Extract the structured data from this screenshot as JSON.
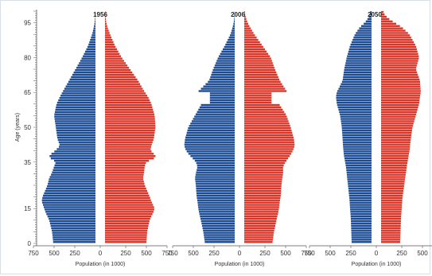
{
  "chart_data": {
    "type": "bar",
    "subtype": "population-pyramid",
    "y_axis": {
      "label": "Age (years)",
      "range": [
        0,
        100
      ],
      "ticks": [
        0,
        15,
        35,
        50,
        65,
        80,
        95
      ]
    },
    "x_axis": {
      "label": "Population (in 1000)",
      "range": [
        -750,
        750
      ],
      "tick_labels": [
        "750",
        "500",
        "250",
        "0",
        "250",
        "500",
        "750"
      ],
      "tick_values": [
        -750,
        -500,
        -250,
        0,
        250,
        500,
        750
      ]
    },
    "colors": {
      "male": "#1c4c94",
      "female": "#dc3528"
    },
    "age_points": [
      0,
      5,
      10,
      13,
      15,
      18,
      20,
      25,
      28,
      30,
      33,
      35,
      37,
      38,
      40,
      42,
      45,
      50,
      55,
      60,
      63,
      65,
      70,
      75,
      80,
      85,
      90,
      93,
      95,
      97,
      99
    ],
    "panels": [
      {
        "title": "1956",
        "male": [
          510,
          525,
          560,
          600,
          620,
          650,
          640,
          580,
          560,
          530,
          500,
          480,
          560,
          550,
          480,
          430,
          460,
          480,
          500,
          470,
          430,
          400,
          320,
          240,
          160,
          90,
          40,
          20,
          10,
          5,
          2
        ],
        "female": [
          500,
          510,
          540,
          580,
          600,
          560,
          540,
          480,
          460,
          470,
          480,
          500,
          620,
          600,
          550,
          560,
          590,
          610,
          600,
          560,
          520,
          480,
          400,
          300,
          200,
          120,
          60,
          30,
          15,
          8,
          3
        ]
      },
      {
        "title": "2006",
        "male": [
          360,
          380,
          410,
          430,
          440,
          450,
          460,
          470,
          480,
          470,
          450,
          470,
          520,
          550,
          590,
          610,
          600,
          560,
          480,
          400,
          420,
          450,
          310,
          260,
          200,
          120,
          50,
          25,
          12,
          5,
          2
        ],
        "female": [
          340,
          360,
          390,
          410,
          420,
          430,
          440,
          450,
          460,
          470,
          470,
          500,
          540,
          560,
          590,
          610,
          600,
          560,
          510,
          420,
          480,
          520,
          430,
          370,
          320,
          220,
          120,
          70,
          40,
          20,
          8
        ],
        "notch": {
          "age": [
            60,
            64
          ],
          "male": 300,
          "female": 330
        }
      },
      {
        "title": "2050",
        "male": [
          240,
          245,
          250,
          255,
          260,
          265,
          270,
          285,
          295,
          300,
          310,
          320,
          330,
          335,
          340,
          345,
          350,
          360,
          380,
          420,
          430,
          420,
          350,
          330,
          300,
          260,
          200,
          140,
          80,
          40,
          15
        ],
        "female": [
          230,
          235,
          240,
          245,
          250,
          255,
          260,
          280,
          290,
          300,
          310,
          320,
          330,
          335,
          345,
          350,
          360,
          380,
          420,
          460,
          470,
          480,
          470,
          420,
          460,
          420,
          340,
          250,
          160,
          80,
          30
        ]
      }
    ]
  }
}
